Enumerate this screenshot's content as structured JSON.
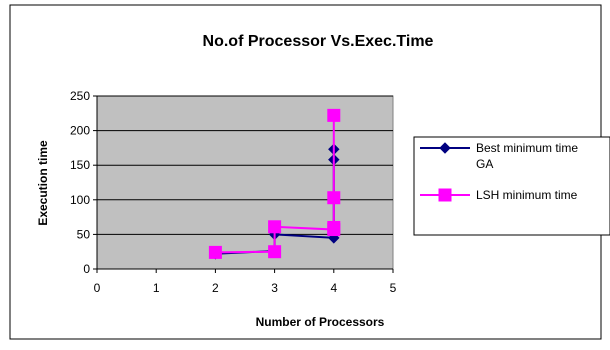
{
  "chart_data": {
    "type": "scatter",
    "title": "No.of Processor Vs.Exec.Time",
    "xlabel": "Number of Processors",
    "ylabel": "Execution time",
    "xlim": [
      0,
      5
    ],
    "ylim": [
      0,
      250
    ],
    "x_ticks": [
      "0",
      "1",
      "2",
      "3",
      "4",
      "5"
    ],
    "y_ticks": [
      "0",
      "50",
      "100",
      "150",
      "200",
      "250"
    ],
    "grid": true,
    "legend_position": "right",
    "plot_background": "#c0c0c0",
    "series": [
      {
        "name": "Best minimum time GA",
        "legend_lines": [
          "Best minimum time",
          "GA"
        ],
        "color": "#000080",
        "marker": "diamond",
        "points": [
          [
            2,
            22
          ],
          [
            3,
            26
          ],
          [
            3,
            50
          ],
          [
            4,
            45
          ],
          [
            4,
            158
          ],
          [
            4,
            173
          ]
        ]
      },
      {
        "name": "LSH minimum time",
        "legend_lines": [
          "LSH minimum time"
        ],
        "color": "#ff00ff",
        "marker": "square",
        "points": [
          [
            2,
            24
          ],
          [
            3,
            25
          ],
          [
            3,
            61
          ],
          [
            4,
            57
          ],
          [
            4,
            60
          ],
          [
            4,
            103
          ],
          [
            4,
            222
          ]
        ]
      }
    ]
  }
}
